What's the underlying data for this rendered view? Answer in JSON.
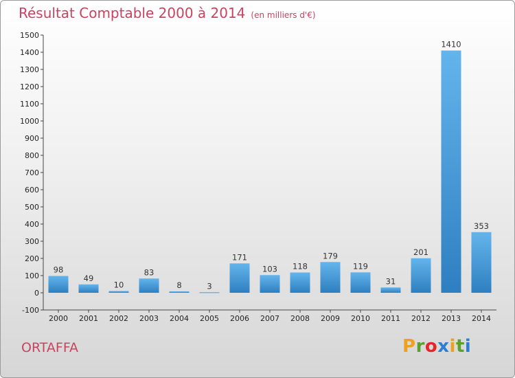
{
  "header": {
    "title": "Résultat Comptable 2000 à 2014",
    "subtitle": "(en milliers d'€)"
  },
  "commune": "ORTAFFA",
  "logo": {
    "letters": [
      "P",
      "r",
      "o",
      "x",
      "i",
      "t",
      "i"
    ],
    "colors": [
      "#f0a020",
      "#5aa02c",
      "#e8262a",
      "#2a7fd4",
      "#f0a020",
      "#5aa02c",
      "#2a7fd4"
    ]
  },
  "colors": {
    "accent": "#c8435f",
    "bar_light": "#64b4ec",
    "bar_dark": "#2e7fc0"
  },
  "chart_data": {
    "type": "bar",
    "categories": [
      "2000",
      "2001",
      "2002",
      "2003",
      "2004",
      "2005",
      "2006",
      "2007",
      "2008",
      "2009",
      "2010",
      "2011",
      "2012",
      "2013",
      "2014"
    ],
    "values": [
      98,
      49,
      10,
      83,
      8,
      3,
      171,
      103,
      118,
      179,
      119,
      31,
      201,
      1410,
      353
    ],
    "ylim": [
      -100,
      1500
    ],
    "yticks": [
      -100,
      0,
      100,
      200,
      300,
      400,
      500,
      600,
      700,
      800,
      900,
      1000,
      1100,
      1200,
      1300,
      1400,
      1500
    ],
    "grid": false,
    "legend": "none"
  }
}
